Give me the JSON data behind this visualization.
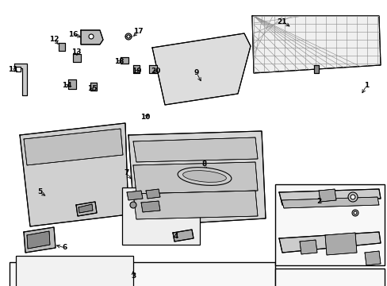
{
  "bg_color": "#ffffff",
  "line_color": "#000000",
  "labels": {
    "1": [
      462,
      108,
      455,
      120
    ],
    "2": [
      402,
      253,
      415,
      260
    ],
    "3": [
      168,
      348,
      168,
      338
    ],
    "4": [
      222,
      298,
      228,
      294
    ],
    "5": [
      50,
      242,
      60,
      248
    ],
    "6": [
      82,
      312,
      68,
      308
    ],
    "7": [
      160,
      218,
      168,
      228
    ],
    "8": [
      258,
      207,
      260,
      218
    ],
    "9": [
      248,
      92,
      255,
      105
    ],
    "10": [
      183,
      148,
      190,
      142
    ],
    "11": [
      16,
      88,
      22,
      92
    ],
    "12": [
      68,
      50,
      76,
      58
    ],
    "13": [
      96,
      66,
      98,
      73
    ],
    "14": [
      84,
      108,
      90,
      105
    ],
    "15": [
      116,
      112,
      120,
      108
    ],
    "16": [
      92,
      43,
      105,
      48
    ],
    "17": [
      174,
      40,
      166,
      48
    ],
    "18": [
      150,
      78,
      156,
      75
    ],
    "19": [
      172,
      90,
      176,
      88
    ],
    "20": [
      196,
      90,
      194,
      88
    ],
    "21": [
      356,
      27,
      368,
      35
    ]
  }
}
